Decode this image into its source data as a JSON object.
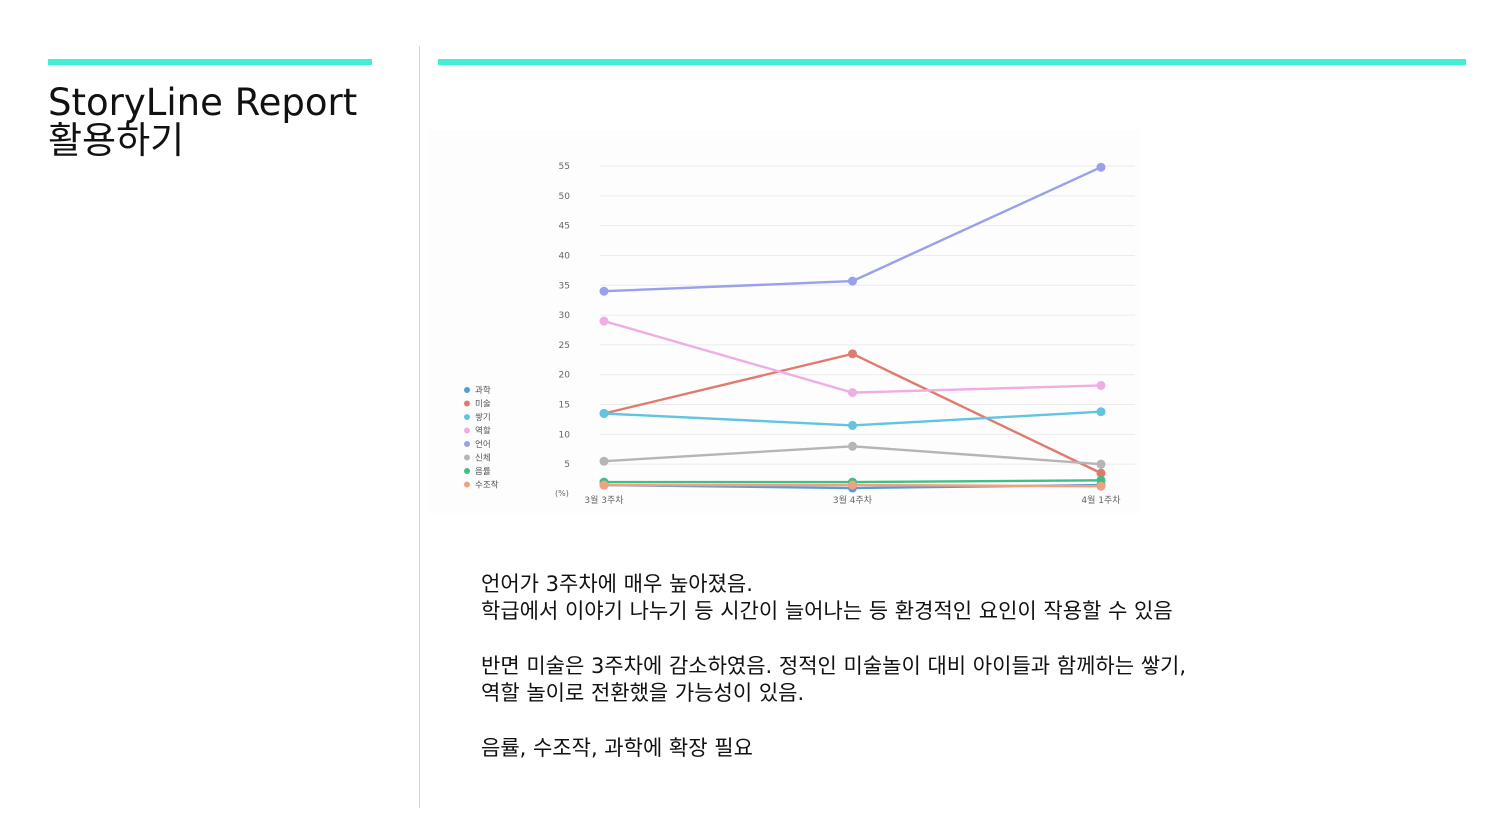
{
  "slide": {
    "title_line1": "StoryLine Report",
    "title_line2": "활용하기",
    "accent_color": "#40f0d4"
  },
  "notes": {
    "p1_line1": "언어가 3주차에 매우 높아졌음.",
    "p1_line2": "학급에서 이야기 나누기 등 시간이 늘어나는 등 환경적인 요인이 작용할 수 있음",
    "p2_line1": "반면 미술은 3주차에 감소하였음. 정적인 미술놀이 대비 아이들과 함께하는 쌓기,",
    "p2_line2": "역할 놀이로 전환했을 가능성이 있음.",
    "p3_line1": "음률, 수조작, 과학에 확장 필요"
  },
  "chart_data": {
    "type": "line",
    "x": [
      "3월 3주차",
      "3월 4주차",
      "4월 1주차"
    ],
    "ylabel": "(%)",
    "ylim": [
      0,
      55
    ],
    "yticks": [
      5,
      10,
      15,
      20,
      25,
      30,
      35,
      40,
      45,
      50,
      55
    ],
    "grid": true,
    "legend_position": "left",
    "series": [
      {
        "name": "과학",
        "color": "#5b9bd5",
        "values": [
          1.5,
          1,
          1.5
        ]
      },
      {
        "name": "미술",
        "color": "#e07a6e",
        "values": [
          13.5,
          23.5,
          3.5
        ]
      },
      {
        "name": "쌓기",
        "color": "#62c4e0",
        "values": [
          13.5,
          11.5,
          13.8
        ]
      },
      {
        "name": "역할",
        "color": "#eeaee4",
        "values": [
          29,
          17,
          18.2
        ]
      },
      {
        "name": "언어",
        "color": "#9aa0ea",
        "values": [
          34,
          35.7,
          54.8
        ]
      },
      {
        "name": "신체",
        "color": "#b5b5b5",
        "values": [
          5.5,
          8,
          5
        ]
      },
      {
        "name": "음률",
        "color": "#3fbf86",
        "values": [
          2,
          2,
          2.3
        ]
      },
      {
        "name": "수조작",
        "color": "#f2a07e",
        "values": [
          1.5,
          1.5,
          1.3
        ]
      }
    ]
  }
}
